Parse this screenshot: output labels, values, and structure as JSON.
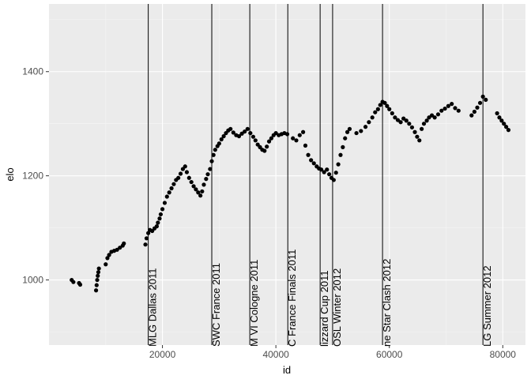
{
  "chart_data": {
    "type": "scatter",
    "title": "",
    "xlabel": "id",
    "ylabel": "elo",
    "xlim": [
      0,
      84000
    ],
    "ylim": [
      875,
      1530
    ],
    "x_ticks": [
      20000,
      40000,
      60000,
      80000
    ],
    "x_tick_labels": [
      "20000",
      "40000",
      "60000",
      "80000"
    ],
    "y_ticks": [
      1000,
      1200,
      1400
    ],
    "y_tick_labels": [
      "1000",
      "1200",
      "1400"
    ],
    "grid": true,
    "legend": "none",
    "colors": {
      "panel": "#EBEBEB",
      "grid_major": "#FFFFFF",
      "grid_minor": "#F5F5F5",
      "points": "#000000",
      "event_lines": "#000000",
      "tick_text": "#4D4D4D"
    },
    "events": [
      {
        "x": 17500,
        "label": "MLG Dallas 2011"
      },
      {
        "x": 28700,
        "label": "SWC France 2011"
      },
      {
        "x": 35400,
        "label": "M VI Cologne 2011"
      },
      {
        "x": 42100,
        "label": "C France Finals 2011"
      },
      {
        "x": 47800,
        "label": "lizzard Cup 2011"
      },
      {
        "x": 50000,
        "label": "OSL Winter 2012"
      },
      {
        "x": 58800,
        "label": "ne Star Clash 2012"
      },
      {
        "x": 76500,
        "label": "LG Summer 2012"
      }
    ],
    "points": [
      [
        4000,
        1000
      ],
      [
        4300,
        996
      ],
      [
        5300,
        994
      ],
      [
        5500,
        991
      ],
      [
        8300,
        980
      ],
      [
        8400,
        990
      ],
      [
        8500,
        1000
      ],
      [
        8600,
        1008
      ],
      [
        8700,
        1015
      ],
      [
        8800,
        1022
      ],
      [
        10000,
        1030
      ],
      [
        10300,
        1042
      ],
      [
        10600,
        1048
      ],
      [
        11000,
        1054
      ],
      [
        11500,
        1056
      ],
      [
        12000,
        1058
      ],
      [
        12500,
        1062
      ],
      [
        13000,
        1066
      ],
      [
        13200,
        1070
      ],
      [
        17000,
        1068
      ],
      [
        17200,
        1080
      ],
      [
        17500,
        1090
      ],
      [
        17800,
        1096
      ],
      [
        18200,
        1094
      ],
      [
        18600,
        1099
      ],
      [
        19000,
        1103
      ],
      [
        19200,
        1110
      ],
      [
        19500,
        1118
      ],
      [
        19700,
        1126
      ],
      [
        20000,
        1136
      ],
      [
        20400,
        1148
      ],
      [
        20800,
        1160
      ],
      [
        21200,
        1168
      ],
      [
        21600,
        1176
      ],
      [
        22000,
        1184
      ],
      [
        22400,
        1192
      ],
      [
        22800,
        1196
      ],
      [
        23200,
        1204
      ],
      [
        23600,
        1213
      ],
      [
        24000,
        1218
      ],
      [
        24300,
        1207
      ],
      [
        24700,
        1196
      ],
      [
        25100,
        1188
      ],
      [
        25500,
        1180
      ],
      [
        25900,
        1174
      ],
      [
        26300,
        1168
      ],
      [
        26700,
        1162
      ],
      [
        27000,
        1170
      ],
      [
        27300,
        1183
      ],
      [
        27700,
        1194
      ],
      [
        28000,
        1203
      ],
      [
        28400,
        1213
      ],
      [
        28700,
        1228
      ],
      [
        29000,
        1240
      ],
      [
        29300,
        1250
      ],
      [
        29700,
        1257
      ],
      [
        30000,
        1262
      ],
      [
        30400,
        1270
      ],
      [
        30800,
        1276
      ],
      [
        31200,
        1282
      ],
      [
        31600,
        1287
      ],
      [
        32000,
        1290
      ],
      [
        32500,
        1283
      ],
      [
        33000,
        1278
      ],
      [
        33500,
        1276
      ],
      [
        34000,
        1281
      ],
      [
        34500,
        1285
      ],
      [
        35000,
        1290
      ],
      [
        35500,
        1282
      ],
      [
        36000,
        1275
      ],
      [
        36400,
        1268
      ],
      [
        36800,
        1260
      ],
      [
        37200,
        1255
      ],
      [
        37600,
        1250
      ],
      [
        38000,
        1248
      ],
      [
        38400,
        1256
      ],
      [
        38800,
        1266
      ],
      [
        39200,
        1272
      ],
      [
        39600,
        1278
      ],
      [
        40000,
        1282
      ],
      [
        40500,
        1278
      ],
      [
        41000,
        1280
      ],
      [
        41500,
        1282
      ],
      [
        42000,
        1280
      ],
      [
        43000,
        1272
      ],
      [
        43600,
        1268
      ],
      [
        44200,
        1278
      ],
      [
        44800,
        1284
      ],
      [
        45200,
        1258
      ],
      [
        45700,
        1240
      ],
      [
        46200,
        1230
      ],
      [
        46700,
        1224
      ],
      [
        47200,
        1218
      ],
      [
        47600,
        1214
      ],
      [
        48000,
        1212
      ],
      [
        48500,
        1207
      ],
      [
        49000,
        1212
      ],
      [
        49400,
        1203
      ],
      [
        49800,
        1196
      ],
      [
        50200,
        1192
      ],
      [
        50600,
        1206
      ],
      [
        51000,
        1222
      ],
      [
        51400,
        1240
      ],
      [
        51800,
        1255
      ],
      [
        52200,
        1272
      ],
      [
        52600,
        1284
      ],
      [
        53000,
        1290
      ],
      [
        54200,
        1282
      ],
      [
        55000,
        1286
      ],
      [
        55800,
        1294
      ],
      [
        56400,
        1303
      ],
      [
        57000,
        1312
      ],
      [
        57500,
        1322
      ],
      [
        58000,
        1328
      ],
      [
        58400,
        1336
      ],
      [
        58800,
        1342
      ],
      [
        59200,
        1340
      ],
      [
        59600,
        1334
      ],
      [
        60000,
        1328
      ],
      [
        60500,
        1320
      ],
      [
        61000,
        1312
      ],
      [
        61500,
        1307
      ],
      [
        62000,
        1303
      ],
      [
        62500,
        1310
      ],
      [
        63000,
        1306
      ],
      [
        63500,
        1300
      ],
      [
        64000,
        1293
      ],
      [
        64500,
        1284
      ],
      [
        64900,
        1275
      ],
      [
        65300,
        1268
      ],
      [
        65700,
        1290
      ],
      [
        66100,
        1300
      ],
      [
        66600,
        1306
      ],
      [
        67000,
        1312
      ],
      [
        67500,
        1316
      ],
      [
        68000,
        1312
      ],
      [
        68600,
        1318
      ],
      [
        69200,
        1325
      ],
      [
        69800,
        1329
      ],
      [
        70400,
        1334
      ],
      [
        71000,
        1338
      ],
      [
        71600,
        1330
      ],
      [
        72200,
        1325
      ],
      [
        74500,
        1316
      ],
      [
        75000,
        1323
      ],
      [
        75500,
        1331
      ],
      [
        76000,
        1340
      ],
      [
        76500,
        1352
      ],
      [
        77000,
        1346
      ],
      [
        79000,
        1320
      ],
      [
        79400,
        1312
      ],
      [
        79800,
        1306
      ],
      [
        80200,
        1300
      ],
      [
        80600,
        1294
      ],
      [
        81000,
        1288
      ]
    ]
  }
}
